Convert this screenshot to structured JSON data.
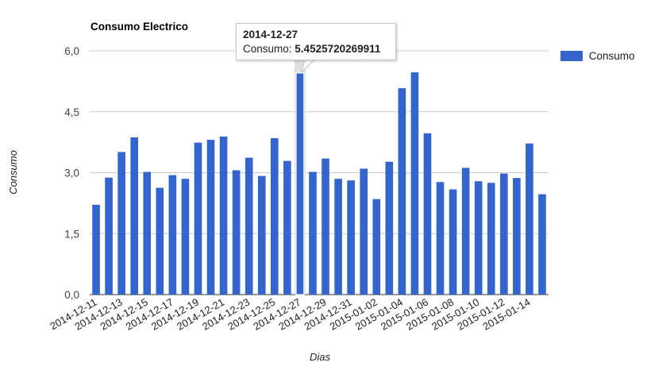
{
  "chart_data": {
    "type": "bar",
    "title": "Consumo Electrico",
    "xlabel": "Dias",
    "ylabel": "Consumo",
    "ylim": [
      0,
      6
    ],
    "yticks": [
      "0,0",
      "1,5",
      "3,0",
      "4,5",
      "6,0"
    ],
    "grid": true,
    "legend_position": "right",
    "bar_color": "#3366cc",
    "series": [
      {
        "name": "Consumo",
        "categories": [
          "2014-12-11",
          "2014-12-12",
          "2014-12-13",
          "2014-12-14",
          "2014-12-15",
          "2014-12-16",
          "2014-12-17",
          "2014-12-18",
          "2014-12-19",
          "2014-12-20",
          "2014-12-21",
          "2014-12-22",
          "2014-12-23",
          "2014-12-24",
          "2014-12-25",
          "2014-12-26",
          "2014-12-27",
          "2014-12-28",
          "2014-12-29",
          "2014-12-30",
          "2014-12-31",
          "2015-01-01",
          "2015-01-02",
          "2015-01-03",
          "2015-01-04",
          "2015-01-05",
          "2015-01-06",
          "2015-01-07",
          "2015-01-08",
          "2015-01-09",
          "2015-01-10",
          "2015-01-11",
          "2015-01-12",
          "2015-01-13",
          "2015-01-14",
          "2015-01-15"
        ],
        "values": [
          2.21,
          2.88,
          3.51,
          3.87,
          3.02,
          2.63,
          2.94,
          2.85,
          3.74,
          3.81,
          3.89,
          3.06,
          3.37,
          2.92,
          3.85,
          3.29,
          5.4525720269911,
          3.02,
          3.35,
          2.85,
          2.81,
          3.1,
          2.35,
          3.27,
          5.08,
          5.47,
          3.97,
          2.77,
          2.59,
          3.12,
          2.79,
          2.75,
          2.98,
          2.87,
          3.72,
          2.47
        ]
      }
    ],
    "xtick_labels": [
      "2014-12-11",
      "2014-12-13",
      "2014-12-15",
      "2014-12-17",
      "2014-12-19",
      "2014-12-21",
      "2014-12-23",
      "2014-12-25",
      "2014-12-27",
      "2014-12-29",
      "2014-12-31",
      "2015-01-02",
      "2015-01-04",
      "2015-01-06",
      "2015-01-08",
      "2015-01-10",
      "2015-01-12",
      "2015-01-14"
    ],
    "tooltip": {
      "date": "2014-12-27",
      "series_label": "Consumo:",
      "value": "5.4525720269911"
    }
  }
}
